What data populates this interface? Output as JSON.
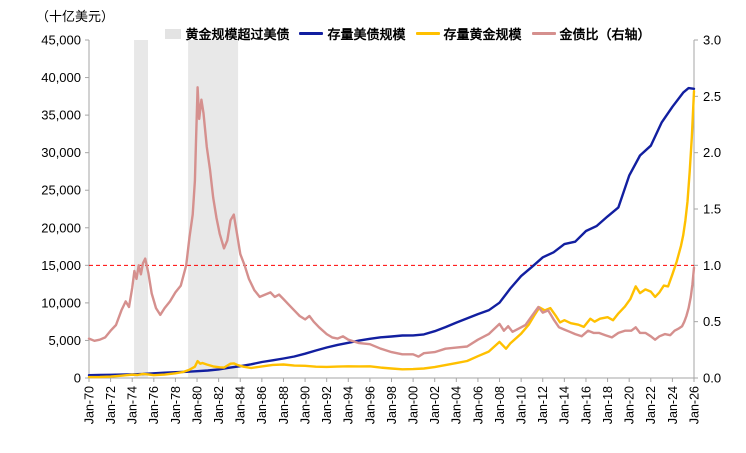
{
  "unit_label": "（十亿美元）",
  "colors": {
    "debt": "#121FA0",
    "gold": "#FFC000",
    "ratio": "#D5908E",
    "band": "#E8E8E8",
    "band_swatch": "#E3E3E3",
    "reference": "#FF0000",
    "axis": "#A6A6A6",
    "text": "#000000",
    "background": "#FFFFFF"
  },
  "chart_data": {
    "type": "line",
    "title": "",
    "unit_label": "（十亿美元）",
    "legend_position": "top",
    "grid": false,
    "x_axis": {
      "min": 1970,
      "max": 2026,
      "tick_values": [
        1970,
        1972,
        1974,
        1976,
        1978,
        1980,
        1982,
        1984,
        1986,
        1988,
        1990,
        1992,
        1994,
        1996,
        1998,
        2000,
        2002,
        2004,
        2006,
        2008,
        2010,
        2012,
        2014,
        2016,
        2018,
        2020,
        2022,
        2024,
        2026
      ],
      "tick_labels": [
        "Jan-70",
        "Jan-72",
        "Jan-74",
        "Jan-76",
        "Jan-78",
        "Jan-80",
        "Jan-82",
        "Jan-84",
        "Jan-86",
        "Jan-88",
        "Jan-90",
        "Jan-92",
        "Jan-94",
        "Jan-96",
        "Jan-98",
        "Jan-00",
        "Jan-02",
        "Jan-04",
        "Jan-06",
        "Jan-08",
        "Jan-10",
        "Jan-12",
        "Jan-14",
        "Jan-16",
        "Jan-18",
        "Jan-20",
        "Jan-22",
        "Jan-24",
        "Jan-26"
      ]
    },
    "left_axis": {
      "min": 0,
      "max": 45000,
      "tick_values": [
        0,
        5000,
        10000,
        15000,
        20000,
        25000,
        30000,
        35000,
        40000,
        45000
      ],
      "tick_labels": [
        "0",
        "5,000",
        "10,000",
        "15,000",
        "20,000",
        "25,000",
        "30,000",
        "35,000",
        "40,000",
        "45,000"
      ]
    },
    "right_axis": {
      "min": 0.0,
      "max": 3.0,
      "tick_values": [
        0,
        0.5,
        1.0,
        1.5,
        2.0,
        2.5,
        3.0
      ],
      "tick_labels": [
        "0.0",
        "0.5",
        "1.0",
        "1.5",
        "2.0",
        "2.5",
        "3.0"
      ]
    },
    "reference_line": {
      "axis": "right",
      "value": 1.0,
      "style": "dashed"
    },
    "bands": {
      "label": "黄金规模超过美债",
      "ranges": [
        [
          1974.17,
          1975.46
        ],
        [
          1979.17,
          1983.8
        ]
      ]
    },
    "legend": [
      {
        "id": "gold-exceeds-debt-band",
        "label": "黄金规模超过美债",
        "swatch": "band"
      },
      {
        "id": "us-debt",
        "label": "存量美债规模",
        "swatch": "line",
        "color_key": "debt"
      },
      {
        "id": "gold-stock",
        "label": "存量黄金规模",
        "swatch": "line",
        "color_key": "gold"
      },
      {
        "id": "gold-debt-ratio",
        "label": "金债比（右轴）",
        "swatch": "line",
        "color_key": "ratio"
      }
    ],
    "series": [
      {
        "id": "us-debt",
        "name": "存量美债规模",
        "axis": "left",
        "color_key": "debt",
        "x": [
          1970,
          1971,
          1972,
          1973,
          1974,
          1975,
          1976,
          1977,
          1978,
          1979,
          1980,
          1981,
          1982,
          1983,
          1984,
          1985,
          1986,
          1987,
          1988,
          1989,
          1990,
          1991,
          1992,
          1993,
          1994,
          1995,
          1996,
          1997,
          1998,
          1999,
          2000,
          2001,
          2002,
          2003,
          2004,
          2005,
          2006,
          2007,
          2008,
          2009,
          2010,
          2011,
          2012,
          2013,
          2014,
          2015,
          2016,
          2017,
          2018,
          2019,
          2020,
          2021,
          2022,
          2023,
          2024,
          2025,
          2025.5,
          2026
        ],
        "y": [
          370,
          398,
          427,
          458,
          475,
          533,
          620,
          700,
          772,
          827,
          908,
          998,
          1142,
          1377,
          1572,
          1823,
          2125,
          2350,
          2602,
          2857,
          3233,
          3665,
          4065,
          4411,
          4693,
          4974,
          5225,
          5413,
          5526,
          5656,
          5674,
          5807,
          6228,
          6783,
          7379,
          7933,
          8507,
          9008,
          10025,
          11910,
          13562,
          14790,
          16066,
          16738,
          17824,
          18151,
          19573,
          20245,
          21516,
          22719,
          26945,
          29617,
          30928,
          34001,
          36100,
          38000,
          38600,
          38500
        ]
      },
      {
        "id": "gold-stock",
        "name": "存量黄金规模",
        "axis": "left",
        "color_key": "gold",
        "x": [
          1970,
          1971,
          1972,
          1973,
          1974,
          1974.5,
          1975,
          1975.5,
          1976,
          1977,
          1978,
          1978.7,
          1979.3,
          1979.8,
          1980.05,
          1980.3,
          1980.5,
          1980.9,
          1981.5,
          1982.1,
          1982.5,
          1983.1,
          1983.4,
          1983.8,
          1984.3,
          1985,
          1986,
          1987,
          1988,
          1989,
          1990,
          1991,
          1992,
          1993,
          1994,
          1995,
          1996,
          1997,
          1998,
          1999,
          2000,
          2001,
          2002,
          2003,
          2004,
          2005,
          2006,
          2007,
          2008,
          2008.6,
          2009,
          2010,
          2010.7,
          2011.2,
          2011.7,
          2012.2,
          2012.7,
          2013.2,
          2013.6,
          2014,
          2014.6,
          2015.3,
          2015.8,
          2016.4,
          2016.8,
          2017.3,
          2018,
          2018.5,
          2019,
          2019.6,
          2020.1,
          2020.6,
          2021,
          2021.5,
          2022,
          2022.4,
          2022.8,
          2023.2,
          2023.6,
          2024,
          2024.4,
          2024.8,
          2025,
          2025.2,
          2025.4,
          2025.6,
          2025.8,
          2026
        ],
        "y": [
          115,
          130,
          185,
          300,
          440,
          400,
          545,
          480,
          370,
          450,
          620,
          800,
          1100,
          1500,
          2250,
          1900,
          2000,
          1800,
          1550,
          1420,
          1380,
          1900,
          1950,
          1700,
          1500,
          1330,
          1550,
          1750,
          1800,
          1650,
          1620,
          1500,
          1480,
          1520,
          1560,
          1540,
          1560,
          1380,
          1270,
          1160,
          1180,
          1270,
          1450,
          1720,
          1980,
          2260,
          2900,
          3520,
          4800,
          3900,
          4600,
          5900,
          7100,
          8300,
          9400,
          9000,
          9300,
          8300,
          7400,
          7700,
          7300,
          7100,
          6800,
          7900,
          7500,
          7900,
          8100,
          7700,
          8600,
          9500,
          10500,
          12200,
          11300,
          11800,
          11500,
          10800,
          11400,
          12300,
          12200,
          13800,
          15500,
          17600,
          19000,
          21000,
          23500,
          27500,
          32000,
          38200
        ]
      },
      {
        "id": "gold-debt-ratio",
        "name": "金债比（右轴）",
        "axis": "right",
        "color_key": "ratio",
        "x": [
          1970,
          1970.5,
          1971,
          1971.5,
          1972,
          1972.5,
          1973,
          1973.4,
          1973.7,
          1974,
          1974.2,
          1974.4,
          1974.6,
          1974.8,
          1975,
          1975.2,
          1975.5,
          1975.8,
          1976.2,
          1976.6,
          1977,
          1977.5,
          1978,
          1978.5,
          1979,
          1979.3,
          1979.6,
          1979.8,
          1979.9,
          1980.05,
          1980.2,
          1980.4,
          1980.6,
          1980.9,
          1981.2,
          1981.5,
          1981.8,
          1982.1,
          1982.5,
          1982.8,
          1983.1,
          1983.4,
          1983.7,
          1984,
          1984.4,
          1984.8,
          1985.3,
          1985.8,
          1986.3,
          1986.8,
          1987.2,
          1987.6,
          1988,
          1988.5,
          1989,
          1989.5,
          1990,
          1990.4,
          1990.8,
          1991.3,
          1992,
          1992.5,
          1993,
          1993.5,
          1994,
          1995,
          1996,
          1997,
          1998,
          1999,
          2000,
          2000.5,
          2001,
          2002,
          2003,
          2004,
          2005,
          2006,
          2007,
          2008,
          2008.4,
          2008.8,
          2009.2,
          2009.8,
          2010.4,
          2011,
          2011.6,
          2012,
          2012.5,
          2013,
          2013.5,
          2014,
          2014.5,
          2015,
          2015.6,
          2016.2,
          2016.7,
          2017.2,
          2017.8,
          2018.4,
          2019,
          2019.6,
          2020.2,
          2020.6,
          2021,
          2021.5,
          2022,
          2022.4,
          2022.8,
          2023.3,
          2023.8,
          2024.2,
          2024.6,
          2024.9,
          2025.1,
          2025.3,
          2025.5,
          2025.7,
          2025.85,
          2026
        ],
        "y": [
          0.35,
          0.33,
          0.34,
          0.36,
          0.42,
          0.47,
          0.6,
          0.68,
          0.63,
          0.8,
          0.95,
          0.88,
          1.0,
          0.92,
          1.02,
          1.06,
          0.93,
          0.75,
          0.62,
          0.56,
          0.62,
          0.68,
          0.76,
          0.82,
          1.0,
          1.25,
          1.45,
          1.75,
          2.1,
          2.58,
          2.3,
          2.47,
          2.35,
          2.05,
          1.85,
          1.6,
          1.42,
          1.28,
          1.15,
          1.22,
          1.4,
          1.45,
          1.28,
          1.1,
          1.0,
          0.88,
          0.78,
          0.72,
          0.74,
          0.76,
          0.72,
          0.74,
          0.7,
          0.65,
          0.6,
          0.55,
          0.52,
          0.55,
          0.5,
          0.45,
          0.39,
          0.36,
          0.35,
          0.37,
          0.34,
          0.31,
          0.3,
          0.26,
          0.23,
          0.21,
          0.21,
          0.19,
          0.22,
          0.23,
          0.26,
          0.27,
          0.28,
          0.34,
          0.39,
          0.48,
          0.42,
          0.46,
          0.41,
          0.44,
          0.47,
          0.55,
          0.63,
          0.58,
          0.6,
          0.52,
          0.45,
          0.43,
          0.41,
          0.39,
          0.37,
          0.42,
          0.4,
          0.4,
          0.38,
          0.36,
          0.4,
          0.42,
          0.42,
          0.45,
          0.4,
          0.4,
          0.37,
          0.34,
          0.37,
          0.39,
          0.38,
          0.42,
          0.44,
          0.46,
          0.5,
          0.55,
          0.62,
          0.72,
          0.83,
          0.98
        ]
      }
    ]
  }
}
